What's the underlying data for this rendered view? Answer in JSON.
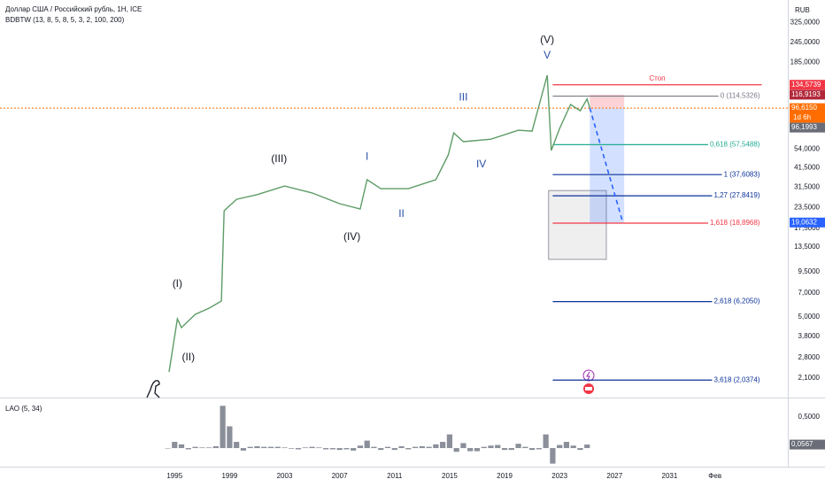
{
  "chart_data": [
    {
      "type": "line",
      "title": "Доллар США / Российский рубль, 1Н, ICE",
      "subtitle": "BDBTW (13, 8, 5, 8, 5, 3, 2, 100, 200)",
      "y_axis_label": "RUB",
      "log_scale": true,
      "color": "#5d9c66",
      "x": [
        1994.6,
        1995.2,
        1995.5,
        1996.5,
        1997.5,
        1998.4,
        1998.6,
        1999.5,
        2001,
        2003,
        2005,
        2007,
        2008.5,
        2009,
        2010,
        2012,
        2014,
        2014.9,
        2015.3,
        2016,
        2018,
        2020,
        2021,
        2022.1,
        2022.4,
        2023,
        2023.8,
        2024.5,
        2025,
        2025.2
      ],
      "values": [
        2.29,
        4.86,
        4.29,
        5.18,
        5.65,
        6.25,
        22.5,
        26.5,
        28.3,
        32,
        29,
        24.9,
        23.1,
        35,
        30.8,
        30.8,
        35,
        49.7,
        68,
        60,
        62.2,
        70.6,
        69.7,
        154,
        53,
        72.4,
        101.7,
        93,
        110,
        96.6
      ],
      "xlim": [
        1982.3,
        2039.6
      ],
      "ylim": [
        1.61,
        448
      ],
      "xticks": [
        1995,
        1999,
        2003,
        2007,
        2011,
        2015,
        2019,
        2023,
        2027,
        2031,
        {
          "value": 2034.3,
          "label": "Фев"
        }
      ],
      "yticks": [
        {
          "value": 325,
          "label": "325,0000"
        },
        {
          "value": 245,
          "label": "245,0000"
        },
        {
          "value": 185,
          "label": "185,0000"
        },
        {
          "value": 54,
          "label": "54,0000"
        },
        {
          "value": 41.5,
          "label": "41,5000"
        },
        {
          "value": 31.5,
          "label": "31,5000"
        },
        {
          "value": 23.5,
          "label": "23,5000"
        },
        {
          "value": 17.5,
          "label": "17,5000"
        },
        {
          "value": 13.5,
          "label": "13,5000"
        },
        {
          "value": 9.5,
          "label": "9,5000"
        },
        {
          "value": 7,
          "label": "7,0000"
        },
        {
          "value": 5,
          "label": "5,0000"
        },
        {
          "value": 3.8,
          "label": "3,8000"
        },
        {
          "value": 2.8,
          "label": "2,8000"
        },
        {
          "value": 2.1,
          "label": "2,1000"
        }
      ],
      "projection": {
        "x": [
          2025.2,
          2027.6
        ],
        "values": [
          96.6,
          19.0632
        ],
        "color": "#2962ff"
      },
      "current_line": {
        "value": 96.615,
        "color": "#ff6d00"
      },
      "levels_x": [
        2022.5,
        2037.7
      ],
      "stop": {
        "label": "Стоп",
        "value": 134.5739,
        "color": "#f23645"
      },
      "levels": [
        {
          "label": "0 (114,5326)",
          "value": 114.5326,
          "color": "#787b86"
        },
        {
          "label": "0,618 (57,5488)",
          "value": 57.5488,
          "color": "#22ab94"
        },
        {
          "label": "1 (37,6083)",
          "value": 37.6083,
          "color": "#0c3299"
        },
        {
          "label": "1,27 (27,8419)",
          "value": 27.8419,
          "color": "#0c3299"
        },
        {
          "label": "1,618 (18,8968)",
          "value": 18.8968,
          "color": "#f23645"
        },
        {
          "label": "2,618 (6,2050)",
          "value": 6.205,
          "color": "#0c3299"
        },
        {
          "label": "3,618 (2,0374)",
          "value": 2.0374,
          "color": "#0c3299"
        }
      ],
      "position": {
        "x": [
          2025.2,
          2027.7
        ],
        "entry": 96.615,
        "stop": 116.9193,
        "target": 19.0632
      },
      "zone": {
        "x": [
          2022.2,
          2026.4
        ],
        "range": [
          11.3,
          30
        ]
      },
      "annotations": [
        {
          "text": "(V)",
          "x": 2022.1,
          "y": 254,
          "color": "#131722"
        },
        {
          "text": "V",
          "x": 2022.1,
          "y": 203,
          "color": "#2a4fa8"
        },
        {
          "text": "III",
          "x": 2016.0,
          "y": 112,
          "color": "#2a4fa8"
        },
        {
          "text": "IV",
          "x": 2017.3,
          "y": 43.3,
          "color": "#2a4fa8"
        },
        {
          "text": "I",
          "x": 2009.0,
          "y": 48.4,
          "color": "#2a4fa8"
        },
        {
          "text": "II",
          "x": 2011.5,
          "y": 21.4,
          "color": "#2a4fa8"
        },
        {
          "text": "(III)",
          "x": 2002.6,
          "y": 46.7,
          "color": "#131722"
        },
        {
          "text": "(IV)",
          "x": 2007.9,
          "y": 15.5,
          "color": "#131722"
        },
        {
          "text": "(I)",
          "x": 1995.2,
          "y": 7.94,
          "color": "#131722"
        },
        {
          "text": "(II)",
          "x": 1996.0,
          "y": 2.8,
          "color": "#131722"
        }
      ],
      "price_labels": [
        {
          "value": 134.5739,
          "label": "134,5739",
          "color": "#f23645"
        },
        {
          "value": 116.9193,
          "label": "116,9193",
          "color": "#b2283a"
        },
        {
          "value": 96.615,
          "label": "96,6150",
          "color": "#ff6d00",
          "countdown": "1d 6h"
        },
        {
          "value": 96.1993,
          "label": "96,1993",
          "color": "#6a6d78"
        },
        {
          "value": 19.0632,
          "label": "19,0632",
          "color": "#2962ff"
        }
      ]
    },
    {
      "type": "bar",
      "title": "LAO (5, 34)",
      "color": "#8a8f99",
      "x": [
        1994.5,
        1995,
        1995.5,
        1996,
        1996.5,
        1997,
        1997.5,
        1998,
        1998.5,
        1999,
        1999.5,
        2000,
        2000.5,
        2001,
        2001.5,
        2002,
        2002.5,
        2003,
        2003.5,
        2004,
        2004.5,
        2005,
        2005.5,
        2006,
        2006.5,
        2007,
        2007.5,
        2008,
        2008.5,
        2009,
        2009.5,
        2010,
        2010.5,
        2011,
        2011.5,
        2012,
        2012.5,
        2013,
        2013.5,
        2014,
        2014.5,
        2015,
        2015.5,
        2016,
        2016.5,
        2017,
        2017.5,
        2018,
        2018.5,
        2019,
        2019.5,
        2020,
        2020.5,
        2021,
        2021.5,
        2022,
        2022.5,
        2023,
        2023.5,
        2024,
        2024.5,
        2025
      ],
      "values": [
        0,
        0.1,
        0.06,
        -0.02,
        0.02,
        0.01,
        0.01,
        0.03,
        0.68,
        0.35,
        0.1,
        -0.04,
        0.02,
        0.03,
        0.02,
        0.02,
        0.02,
        0.01,
        -0.01,
        -0.02,
        0.01,
        0.02,
        0.01,
        -0.02,
        -0.02,
        -0.03,
        -0.02,
        -0.04,
        0.04,
        0.12,
        0.02,
        -0.03,
        0.02,
        -0.03,
        0.03,
        -0.02,
        0.02,
        0.03,
        0.02,
        0.06,
        0.1,
        0.22,
        -0.06,
        0.08,
        -0.05,
        -0.05,
        0.02,
        0.04,
        0.05,
        -0.03,
        -0.03,
        0.07,
        0.02,
        -0.03,
        -0.02,
        0.22,
        -0.25,
        0.05,
        0.1,
        0.04,
        -0.03,
        0.0567
      ],
      "xlim": [
        1982.3,
        2039.6
      ],
      "ylim": [
        -0.27,
        0.77
      ],
      "yticks": [
        {
          "value": 0.5,
          "label": "0,5000"
        }
      ],
      "last_label": {
        "value": 0.0567,
        "label": "0,0567",
        "color": "#6a6d78"
      }
    }
  ]
}
